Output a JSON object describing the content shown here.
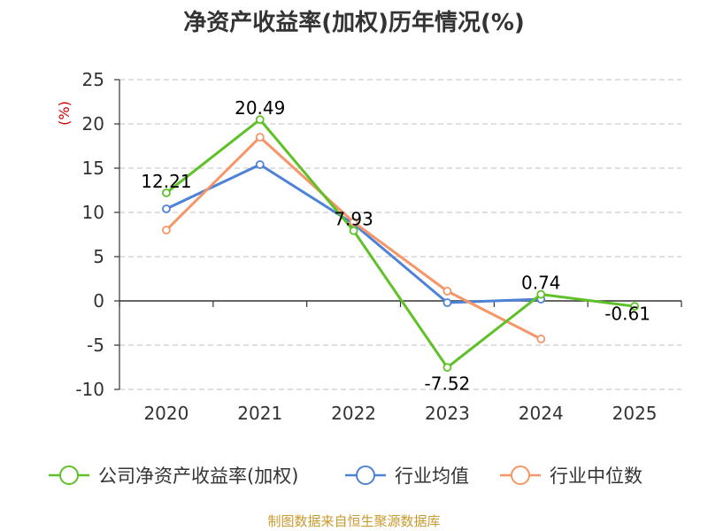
{
  "chart_data": {
    "type": "line",
    "title": "净资产收益率(加权)历年情况(%)",
    "ylabel": "(%)",
    "xlabel": "",
    "categories": [
      "2020",
      "2021",
      "2022",
      "2023",
      "2024",
      "2025"
    ],
    "ylim": [
      -10,
      25
    ],
    "yticks": [
      25,
      20,
      15,
      10,
      5,
      0,
      -5,
      -10
    ],
    "ytick_labels": [
      "25",
      "20",
      "15",
      "10",
      "5",
      "0",
      "-5",
      "-10"
    ],
    "grid": true,
    "legend_position": "bottom",
    "series": [
      {
        "name": "公司净资产收益率(加权)",
        "color": "#5ec128",
        "values": [
          12.21,
          20.49,
          7.93,
          -7.52,
          0.74,
          -0.61
        ],
        "data_labels": [
          "12.21",
          "20.49",
          "7.93",
          "-7.52",
          "0.74",
          "-0.61"
        ]
      },
      {
        "name": "行业均值",
        "color": "#4e82d6",
        "values": [
          10.4,
          15.4,
          8.7,
          -0.2,
          0.2,
          null
        ]
      },
      {
        "name": "行业中位数",
        "color": "#f69567",
        "values": [
          8.0,
          18.5,
          8.9,
          1.1,
          -4.3,
          null
        ]
      }
    ]
  },
  "footer": {
    "source": "制图数据来自恒生聚源数据库"
  }
}
